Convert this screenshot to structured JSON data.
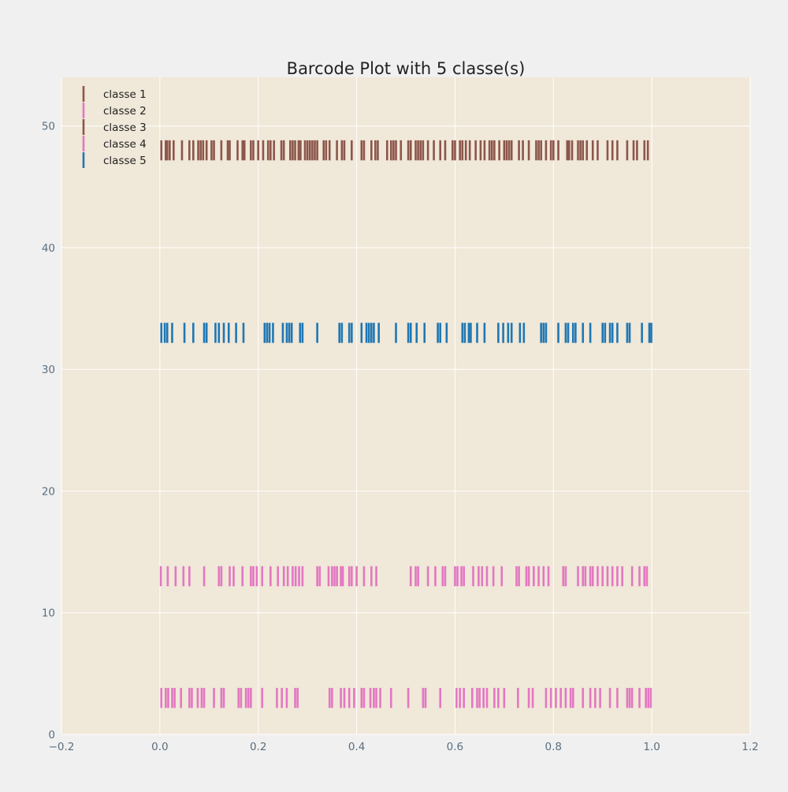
{
  "chart_data": {
    "type": "barcode",
    "title": "Barcode Plot with 5 classe(s)",
    "xlabel": "",
    "ylabel": "",
    "xlim": [
      -0.2,
      1.2
    ],
    "ylim": [
      0,
      54
    ],
    "xticks": [
      -0.2,
      0.0,
      0.2,
      0.4,
      0.6,
      0.8,
      1.0,
      1.2
    ],
    "xtick_labels": [
      "−0.2",
      "0.0",
      "0.2",
      "0.4",
      "0.6",
      "0.8",
      "1.0",
      "1.2"
    ],
    "yticks": [
      0,
      10,
      20,
      30,
      40,
      50
    ],
    "ytick_labels": [
      "0",
      "10",
      "20",
      "30",
      "40",
      "50"
    ],
    "grid": true,
    "legend_position": "top-left",
    "colors": {
      "background": "#f0f0f0",
      "plot_background": "#f0e8d8",
      "grid": "#ffffff",
      "tick_text": "#5a6e7f",
      "title_text": "#222222"
    },
    "series": [
      {
        "name": "classe 1",
        "color": "#8c564b",
        "y_range": [
          47.5,
          48.5
        ],
        "positions": [
          0.003,
          0.012,
          0.015,
          0.02,
          0.028,
          0.045,
          0.06,
          0.068,
          0.078,
          0.083,
          0.088,
          0.095,
          0.105,
          0.11,
          0.125,
          0.138,
          0.142,
          0.158,
          0.168,
          0.172,
          0.185,
          0.19,
          0.2,
          0.21,
          0.22,
          0.225,
          0.232,
          0.247,
          0.252,
          0.265,
          0.27,
          0.275,
          0.282,
          0.286,
          0.295,
          0.3,
          0.305,
          0.31,
          0.315,
          0.32,
          0.333,
          0.338,
          0.345,
          0.36,
          0.37,
          0.375,
          0.39,
          0.41,
          0.415,
          0.43,
          0.438,
          0.443,
          0.462,
          0.47,
          0.475,
          0.48,
          0.49,
          0.505,
          0.51,
          0.52,
          0.525,
          0.53,
          0.535,
          0.545,
          0.557,
          0.57,
          0.58,
          0.595,
          0.6,
          0.61,
          0.615,
          0.622,
          0.63,
          0.642,
          0.652,
          0.66,
          0.67,
          0.675,
          0.68,
          0.69,
          0.7,
          0.705,
          0.71,
          0.715,
          0.73,
          0.738,
          0.75,
          0.765,
          0.77,
          0.775,
          0.785,
          0.795,
          0.8,
          0.81,
          0.828,
          0.832,
          0.838,
          0.85,
          0.855,
          0.86,
          0.868,
          0.88,
          0.89,
          0.91,
          0.92,
          0.93,
          0.95,
          0.963,
          0.97,
          0.985,
          0.992
        ]
      },
      {
        "name": "classe 2",
        "color": "#e377c2",
        "y_range": [
          12.5,
          13.5
        ],
        "positions": [
          0.002,
          0.016,
          0.032,
          0.048,
          0.06,
          0.09,
          0.12,
          0.125,
          0.142,
          0.15,
          0.168,
          0.185,
          0.19,
          0.197,
          0.208,
          0.225,
          0.24,
          0.252,
          0.26,
          0.27,
          0.276,
          0.283,
          0.29,
          0.32,
          0.325,
          0.343,
          0.35,
          0.355,
          0.36,
          0.368,
          0.372,
          0.385,
          0.39,
          0.4,
          0.415,
          0.43,
          0.44,
          0.51,
          0.52,
          0.525,
          0.545,
          0.56,
          0.575,
          0.58,
          0.6,
          0.605,
          0.613,
          0.618,
          0.637,
          0.648,
          0.655,
          0.665,
          0.678,
          0.695,
          0.725,
          0.73,
          0.745,
          0.75,
          0.76,
          0.77,
          0.78,
          0.79,
          0.82,
          0.825,
          0.85,
          0.86,
          0.865,
          0.875,
          0.88,
          0.89,
          0.9,
          0.91,
          0.92,
          0.93,
          0.94,
          0.96,
          0.975,
          0.985,
          0.99
        ]
      },
      {
        "name": "classe 3",
        "color": "#8c564b",
        "y_range": [
          47.5,
          48.5
        ],
        "positions": []
      },
      {
        "name": "classe 4",
        "color": "#e377c2",
        "y_range": [
          2.5,
          3.5
        ],
        "positions": [
          0.003,
          0.012,
          0.017,
          0.025,
          0.03,
          0.043,
          0.06,
          0.065,
          0.077,
          0.085,
          0.09,
          0.11,
          0.125,
          0.13,
          0.16,
          0.165,
          0.175,
          0.18,
          0.185,
          0.208,
          0.238,
          0.248,
          0.258,
          0.275,
          0.28,
          0.345,
          0.35,
          0.368,
          0.375,
          0.385,
          0.395,
          0.41,
          0.415,
          0.428,
          0.435,
          0.44,
          0.448,
          0.47,
          0.505,
          0.535,
          0.54,
          0.57,
          0.603,
          0.61,
          0.618,
          0.635,
          0.645,
          0.65,
          0.658,
          0.665,
          0.68,
          0.688,
          0.7,
          0.728,
          0.75,
          0.758,
          0.785,
          0.795,
          0.805,
          0.815,
          0.825,
          0.835,
          0.84,
          0.86,
          0.875,
          0.885,
          0.895,
          0.915,
          0.93,
          0.95,
          0.955,
          0.96,
          0.975,
          0.988,
          0.993,
          0.998
        ]
      },
      {
        "name": "classe 5",
        "color": "#1f77b4",
        "y_range": [
          32.5,
          33.5
        ],
        "positions": [
          0.003,
          0.01,
          0.015,
          0.025,
          0.05,
          0.068,
          0.09,
          0.095,
          0.113,
          0.12,
          0.13,
          0.14,
          0.155,
          0.17,
          0.213,
          0.218,
          0.223,
          0.23,
          0.25,
          0.258,
          0.263,
          0.268,
          0.285,
          0.29,
          0.32,
          0.365,
          0.37,
          0.385,
          0.39,
          0.41,
          0.42,
          0.425,
          0.43,
          0.435,
          0.445,
          0.48,
          0.505,
          0.51,
          0.522,
          0.538,
          0.565,
          0.57,
          0.583,
          0.615,
          0.62,
          0.628,
          0.632,
          0.645,
          0.66,
          0.688,
          0.698,
          0.708,
          0.715,
          0.732,
          0.74,
          0.775,
          0.78,
          0.785,
          0.81,
          0.825,
          0.83,
          0.84,
          0.845,
          0.86,
          0.875,
          0.9,
          0.905,
          0.915,
          0.92,
          0.93,
          0.95,
          0.955,
          0.98,
          0.995,
          0.999
        ]
      }
    ]
  }
}
